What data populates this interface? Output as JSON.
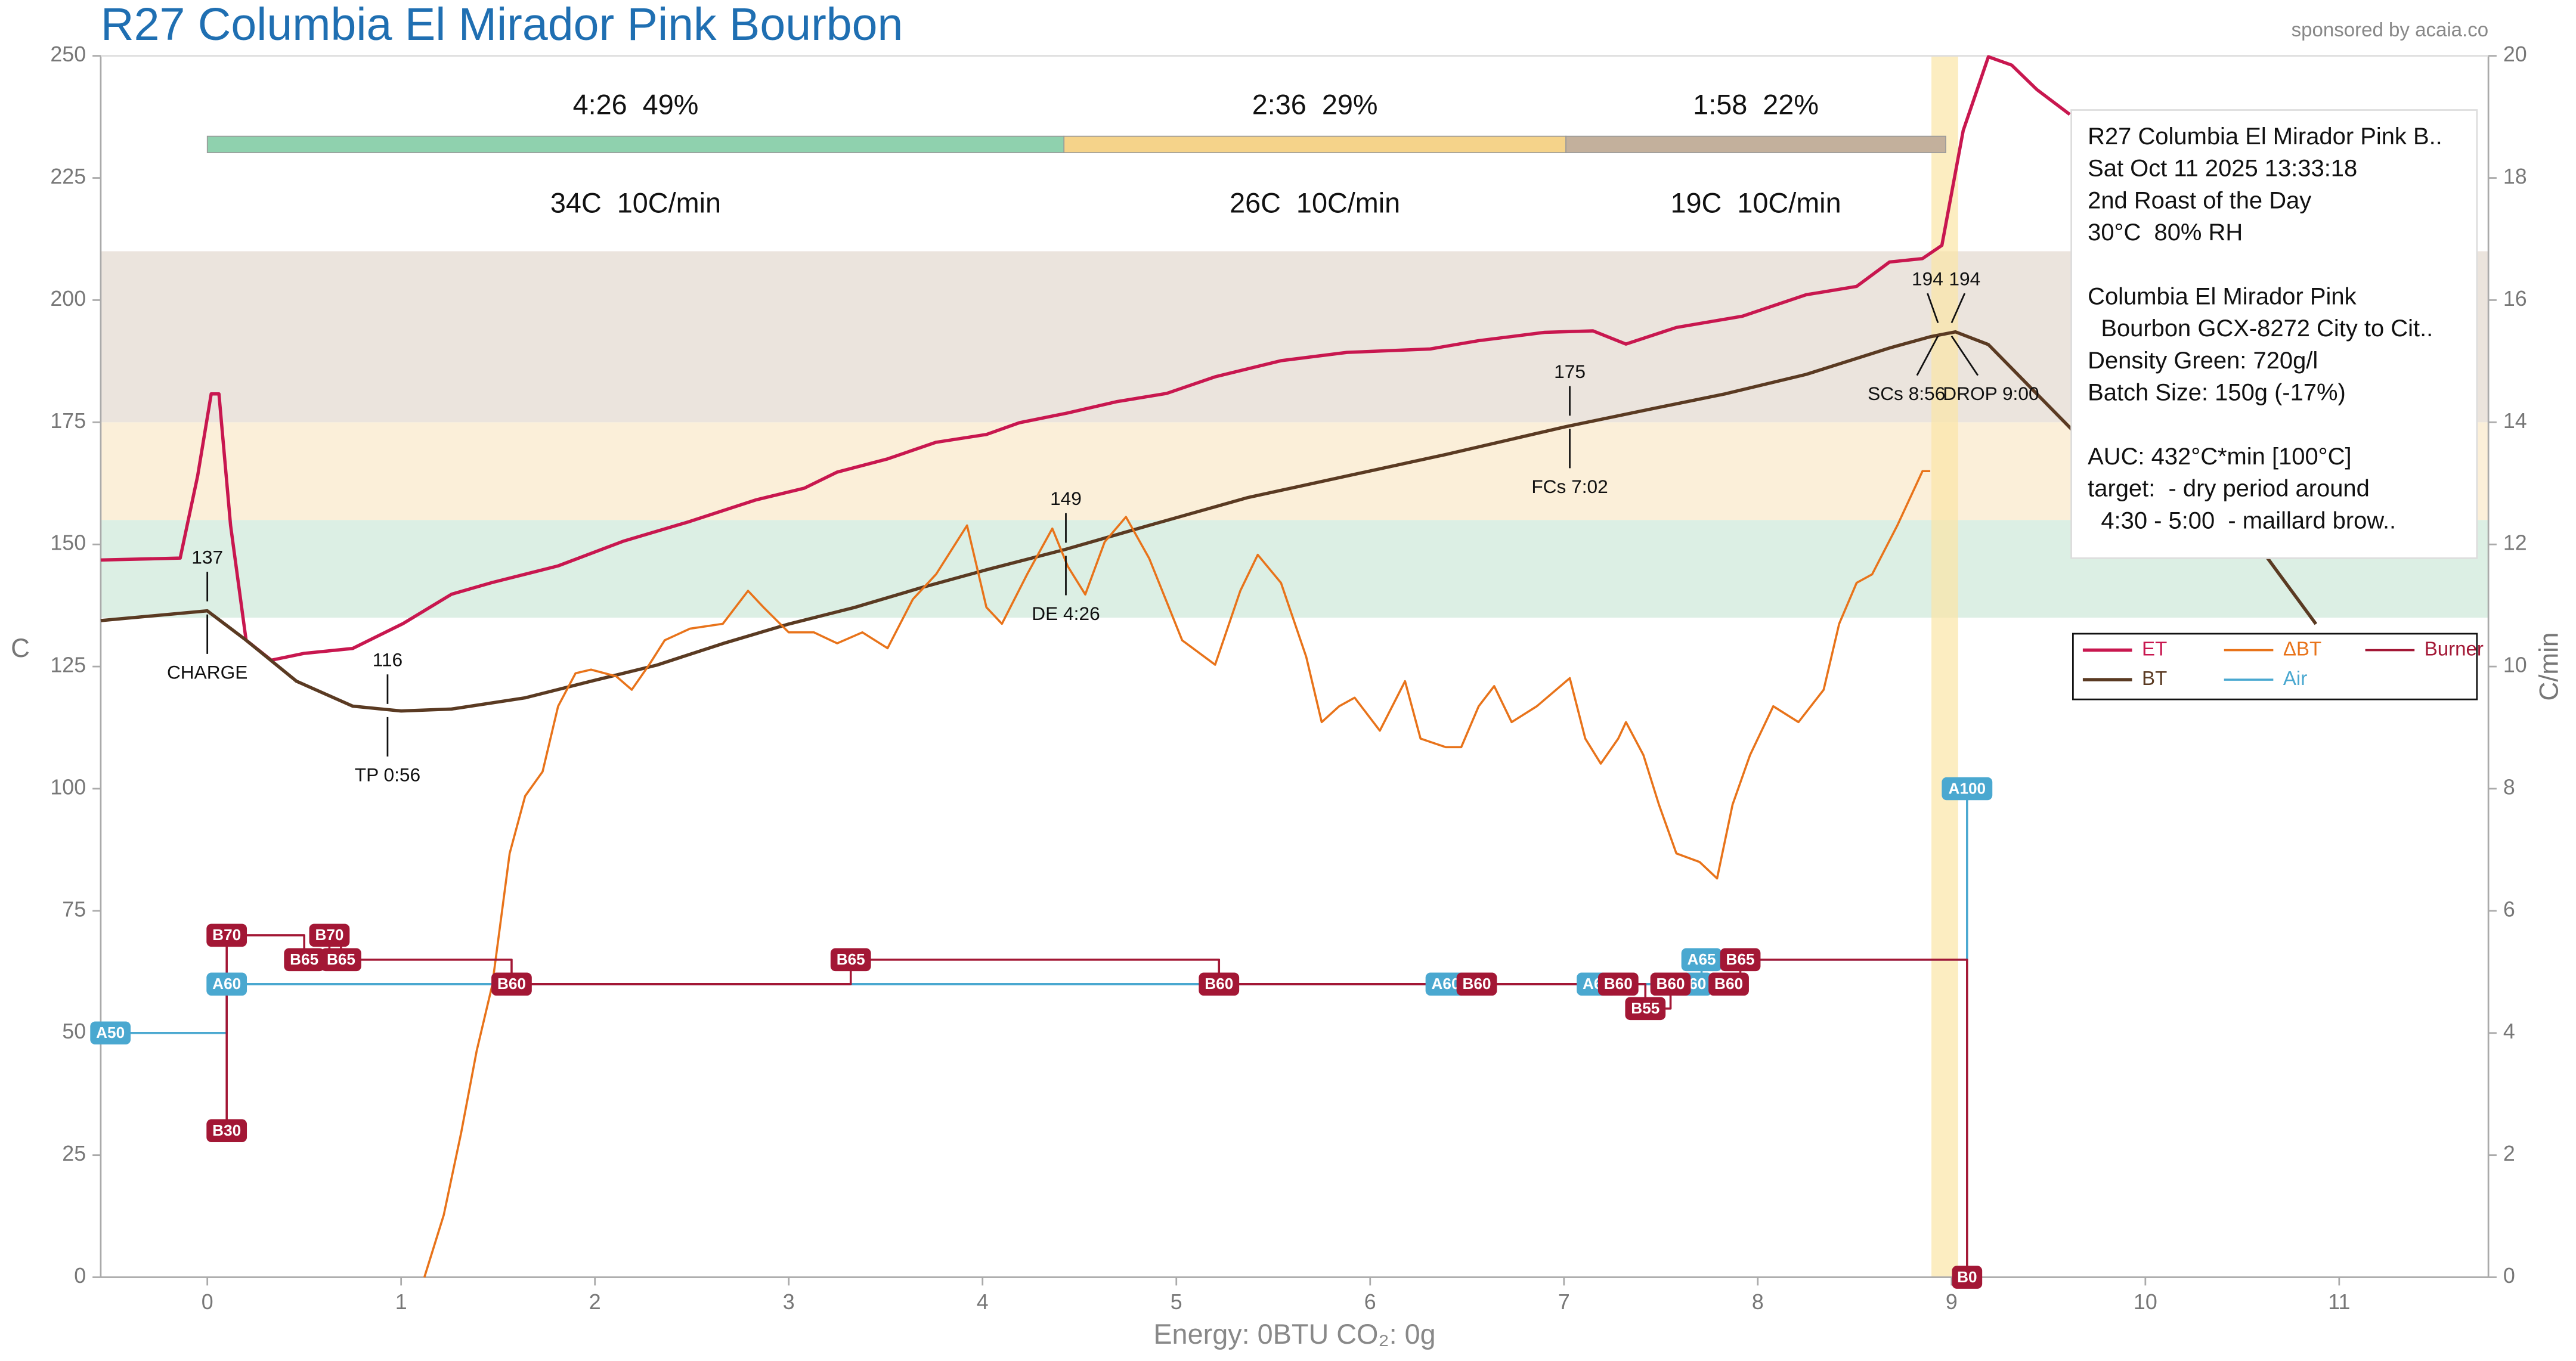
{
  "chart_data": {
    "type": "line",
    "title": "R27 Columbia El Mirador Pink Bourbon",
    "sponsor": "sponsored by acaia.co",
    "footer": "Energy: 0BTU   CO₂: 0g",
    "ylabel": "C",
    "y2label": "C/min",
    "xlim": [
      -0.55,
      11.77
    ],
    "xticks": [
      0,
      1,
      2,
      3,
      4,
      5,
      6,
      7,
      8,
      9,
      10,
      11
    ],
    "ylim": [
      0,
      250
    ],
    "yticks": [
      0,
      25,
      50,
      75,
      100,
      125,
      150,
      175,
      200,
      225,
      250
    ],
    "y2lim": [
      0,
      20
    ],
    "y2ticks": [
      0,
      2,
      4,
      6,
      8,
      10,
      12,
      14,
      16,
      18,
      20
    ],
    "legend": "right",
    "bands": [
      {
        "from": 135,
        "to": 155,
        "color": "#dcefe4"
      },
      {
        "from": 155,
        "to": 175,
        "color": "#fbefd9"
      },
      {
        "from": 175,
        "to": 210,
        "color": "#ebe4dd"
      }
    ],
    "phases": [
      {
        "label": "4:26  49%",
        "detail": "34C  10C/min",
        "start": 0,
        "end": 4.42,
        "color": "#8fd1ae"
      },
      {
        "label": "2:36  29%",
        "detail": "26C  10C/min",
        "start": 4.42,
        "end": 7.01,
        "color": "#f5d38a"
      },
      {
        "label": "1:58  22%",
        "detail": "19C  10C/min",
        "start": 7.01,
        "end": 8.97,
        "color": "#c3b09c"
      }
    ],
    "series": [
      {
        "name": "ET",
        "color": "#c8174f",
        "width": 2,
        "x": [
          -0.55,
          -0.14,
          -0.05,
          0.02,
          0.06,
          0.12,
          0.2,
          0.33,
          0.5,
          0.75,
          1.01,
          1.26,
          1.47,
          1.81,
          2.15,
          2.49,
          2.83,
          3.08,
          3.25,
          3.51,
          3.76,
          4.02,
          4.19,
          4.44,
          4.69,
          4.95,
          5.2,
          5.54,
          5.88,
          6.31,
          6.56,
          6.9,
          7.15,
          7.32,
          7.58,
          7.92,
          8.25,
          8.51,
          8.68,
          8.85,
          8.95,
          9.06,
          9.19,
          9.31,
          9.44,
          9.61
        ],
        "values": [
          146.8,
          147.2,
          164.0,
          180.8,
          180.8,
          153.9,
          130.4,
          126.3,
          127.7,
          128.7,
          133.8,
          139.8,
          142.2,
          145.6,
          150.7,
          154.7,
          159.1,
          161.5,
          164.8,
          167.5,
          170.9,
          172.5,
          174.9,
          176.9,
          179.2,
          180.9,
          184.3,
          187.6,
          189.3,
          190.0,
          191.7,
          193.4,
          193.7,
          191.0,
          194.4,
          196.7,
          201.1,
          202.8,
          207.8,
          208.5,
          211.2,
          234.7,
          249.8,
          248.1,
          243.1,
          238.0
        ]
      },
      {
        "name": "BT",
        "color": "#5a3a22",
        "width": 2,
        "x": [
          -0.55,
          0,
          0.2,
          0.46,
          0.75,
          1.0,
          1.26,
          1.64,
          1.98,
          2.32,
          2.66,
          3.0,
          3.34,
          3.68,
          4.02,
          4.42,
          4.86,
          5.37,
          5.88,
          6.39,
          7.01,
          7.41,
          7.83,
          8.25,
          8.68,
          8.89,
          9.02,
          9.19,
          9.44,
          9.69,
          9.95,
          10.29,
          10.63,
          10.88
        ],
        "values": [
          134.4,
          136.4,
          130.4,
          122.0,
          116.9,
          115.9,
          116.3,
          118.6,
          122.0,
          125.3,
          129.7,
          133.7,
          137.1,
          141.1,
          144.8,
          148.9,
          153.9,
          159.6,
          164.0,
          168.4,
          174.1,
          177.4,
          180.8,
          184.8,
          190.2,
          192.5,
          193.5,
          190.9,
          180.8,
          170.7,
          164.0,
          157.3,
          147.2,
          133.7
        ]
      },
      {
        "name": "ΔBT",
        "color": "#e8731a",
        "width": 1.3,
        "axis": "y2",
        "x": [
          1.12,
          1.22,
          1.31,
          1.39,
          1.47,
          1.56,
          1.64,
          1.73,
          1.81,
          1.9,
          1.98,
          2.11,
          2.19,
          2.28,
          2.36,
          2.49,
          2.66,
          2.79,
          2.87,
          3.0,
          3.13,
          3.25,
          3.38,
          3.51,
          3.64,
          3.76,
          3.92,
          4.02,
          4.1,
          4.23,
          4.36,
          4.44,
          4.53,
          4.63,
          4.74,
          4.86,
          5.03,
          5.2,
          5.33,
          5.42,
          5.54,
          5.67,
          5.75,
          5.84,
          5.92,
          6.05,
          6.18,
          6.26,
          6.39,
          6.47,
          6.56,
          6.64,
          6.73,
          6.86,
          7.03,
          7.11,
          7.19,
          7.28,
          7.32,
          7.41,
          7.49,
          7.58,
          7.7,
          7.79,
          7.87,
          7.96,
          8.08,
          8.21,
          8.34,
          8.42,
          8.51,
          8.59,
          8.72,
          8.85,
          8.89
        ],
        "values": [
          0.0,
          1.02,
          2.37,
          3.71,
          4.78,
          6.94,
          7.88,
          8.28,
          9.35,
          9.89,
          9.95,
          9.84,
          9.62,
          10.03,
          10.43,
          10.62,
          10.7,
          11.24,
          10.97,
          10.56,
          10.56,
          10.38,
          10.56,
          10.3,
          11.1,
          11.51,
          12.31,
          10.97,
          10.7,
          11.51,
          12.26,
          11.64,
          11.18,
          12.04,
          12.45,
          11.77,
          10.43,
          10.03,
          11.24,
          11.83,
          11.37,
          10.16,
          9.09,
          9.35,
          9.49,
          8.95,
          9.76,
          8.82,
          8.68,
          8.68,
          9.35,
          9.68,
          9.09,
          9.35,
          9.81,
          8.82,
          8.41,
          8.82,
          9.09,
          8.55,
          7.74,
          6.94,
          6.8,
          6.53,
          7.74,
          8.55,
          9.35,
          9.09,
          9.62,
          10.7,
          11.37,
          11.51,
          12.31,
          13.2,
          13.2
        ]
      },
      {
        "name": "Air",
        "color": "#4aa8d0",
        "width": 1.3,
        "step": true,
        "x": [
          -0.5,
          0.1,
          6.39,
          7.17,
          7.66,
          7.71,
          9.08
        ],
        "values": [
          50,
          60,
          60,
          60,
          60,
          65,
          100
        ],
        "value_labels": [
          "A50",
          "A60",
          "A60",
          "A60",
          "A60",
          "A65",
          "A100"
        ]
      },
      {
        "name": "Burner",
        "color": "#a31735",
        "width": 1.3,
        "step": true,
        "x": [
          0.1,
          0.1,
          0.5,
          0.63,
          0.69,
          1.57,
          3.32,
          5.22,
          6.55,
          7.28,
          7.42,
          7.55,
          7.85,
          7.91,
          9.08
        ],
        "values": [
          30,
          70,
          65,
          70,
          65,
          60,
          65,
          60,
          60,
          60,
          55,
          60,
          60,
          65,
          0
        ],
        "value_labels": [
          "B30",
          "B70",
          "B65",
          "B70",
          "B65",
          "B60",
          "B65",
          "B60",
          "B60",
          "B60",
          "B55",
          "B60",
          "B60",
          "B65",
          "B0"
        ]
      }
    ],
    "annotations": [
      {
        "text": "CHARGE",
        "x": 0,
        "y": 137
      },
      {
        "text": "TP 0:56",
        "x": 0.93,
        "y": 116
      },
      {
        "text": "DE 4:26",
        "x": 4.43,
        "y": 149
      },
      {
        "text": "FCs 7:02",
        "x": 7.03,
        "y": 175
      },
      {
        "text": "SCs 8:56",
        "x": 8.93,
        "y": 194
      },
      {
        "text": "DROP 9:00",
        "x": 9.0,
        "y": 194
      }
    ],
    "info": [
      [
        "R27 Columbia El Mirador Pink B..",
        "Sat Oct 11 2025 13:33:18",
        "2nd Roast of the Day",
        "30°C  80% RH"
      ],
      [
        "Columbia El Mirador Pink",
        "  Bourbon GCX-8272 City to Cit..",
        "Density Green: 720g/l",
        "Batch Size: 150g (-17%)"
      ],
      [
        "AUC: 432°C*min [100°C]",
        "target:  - dry period around",
        "  4:30 - 5:00  - maillard brow.."
      ]
    ]
  }
}
